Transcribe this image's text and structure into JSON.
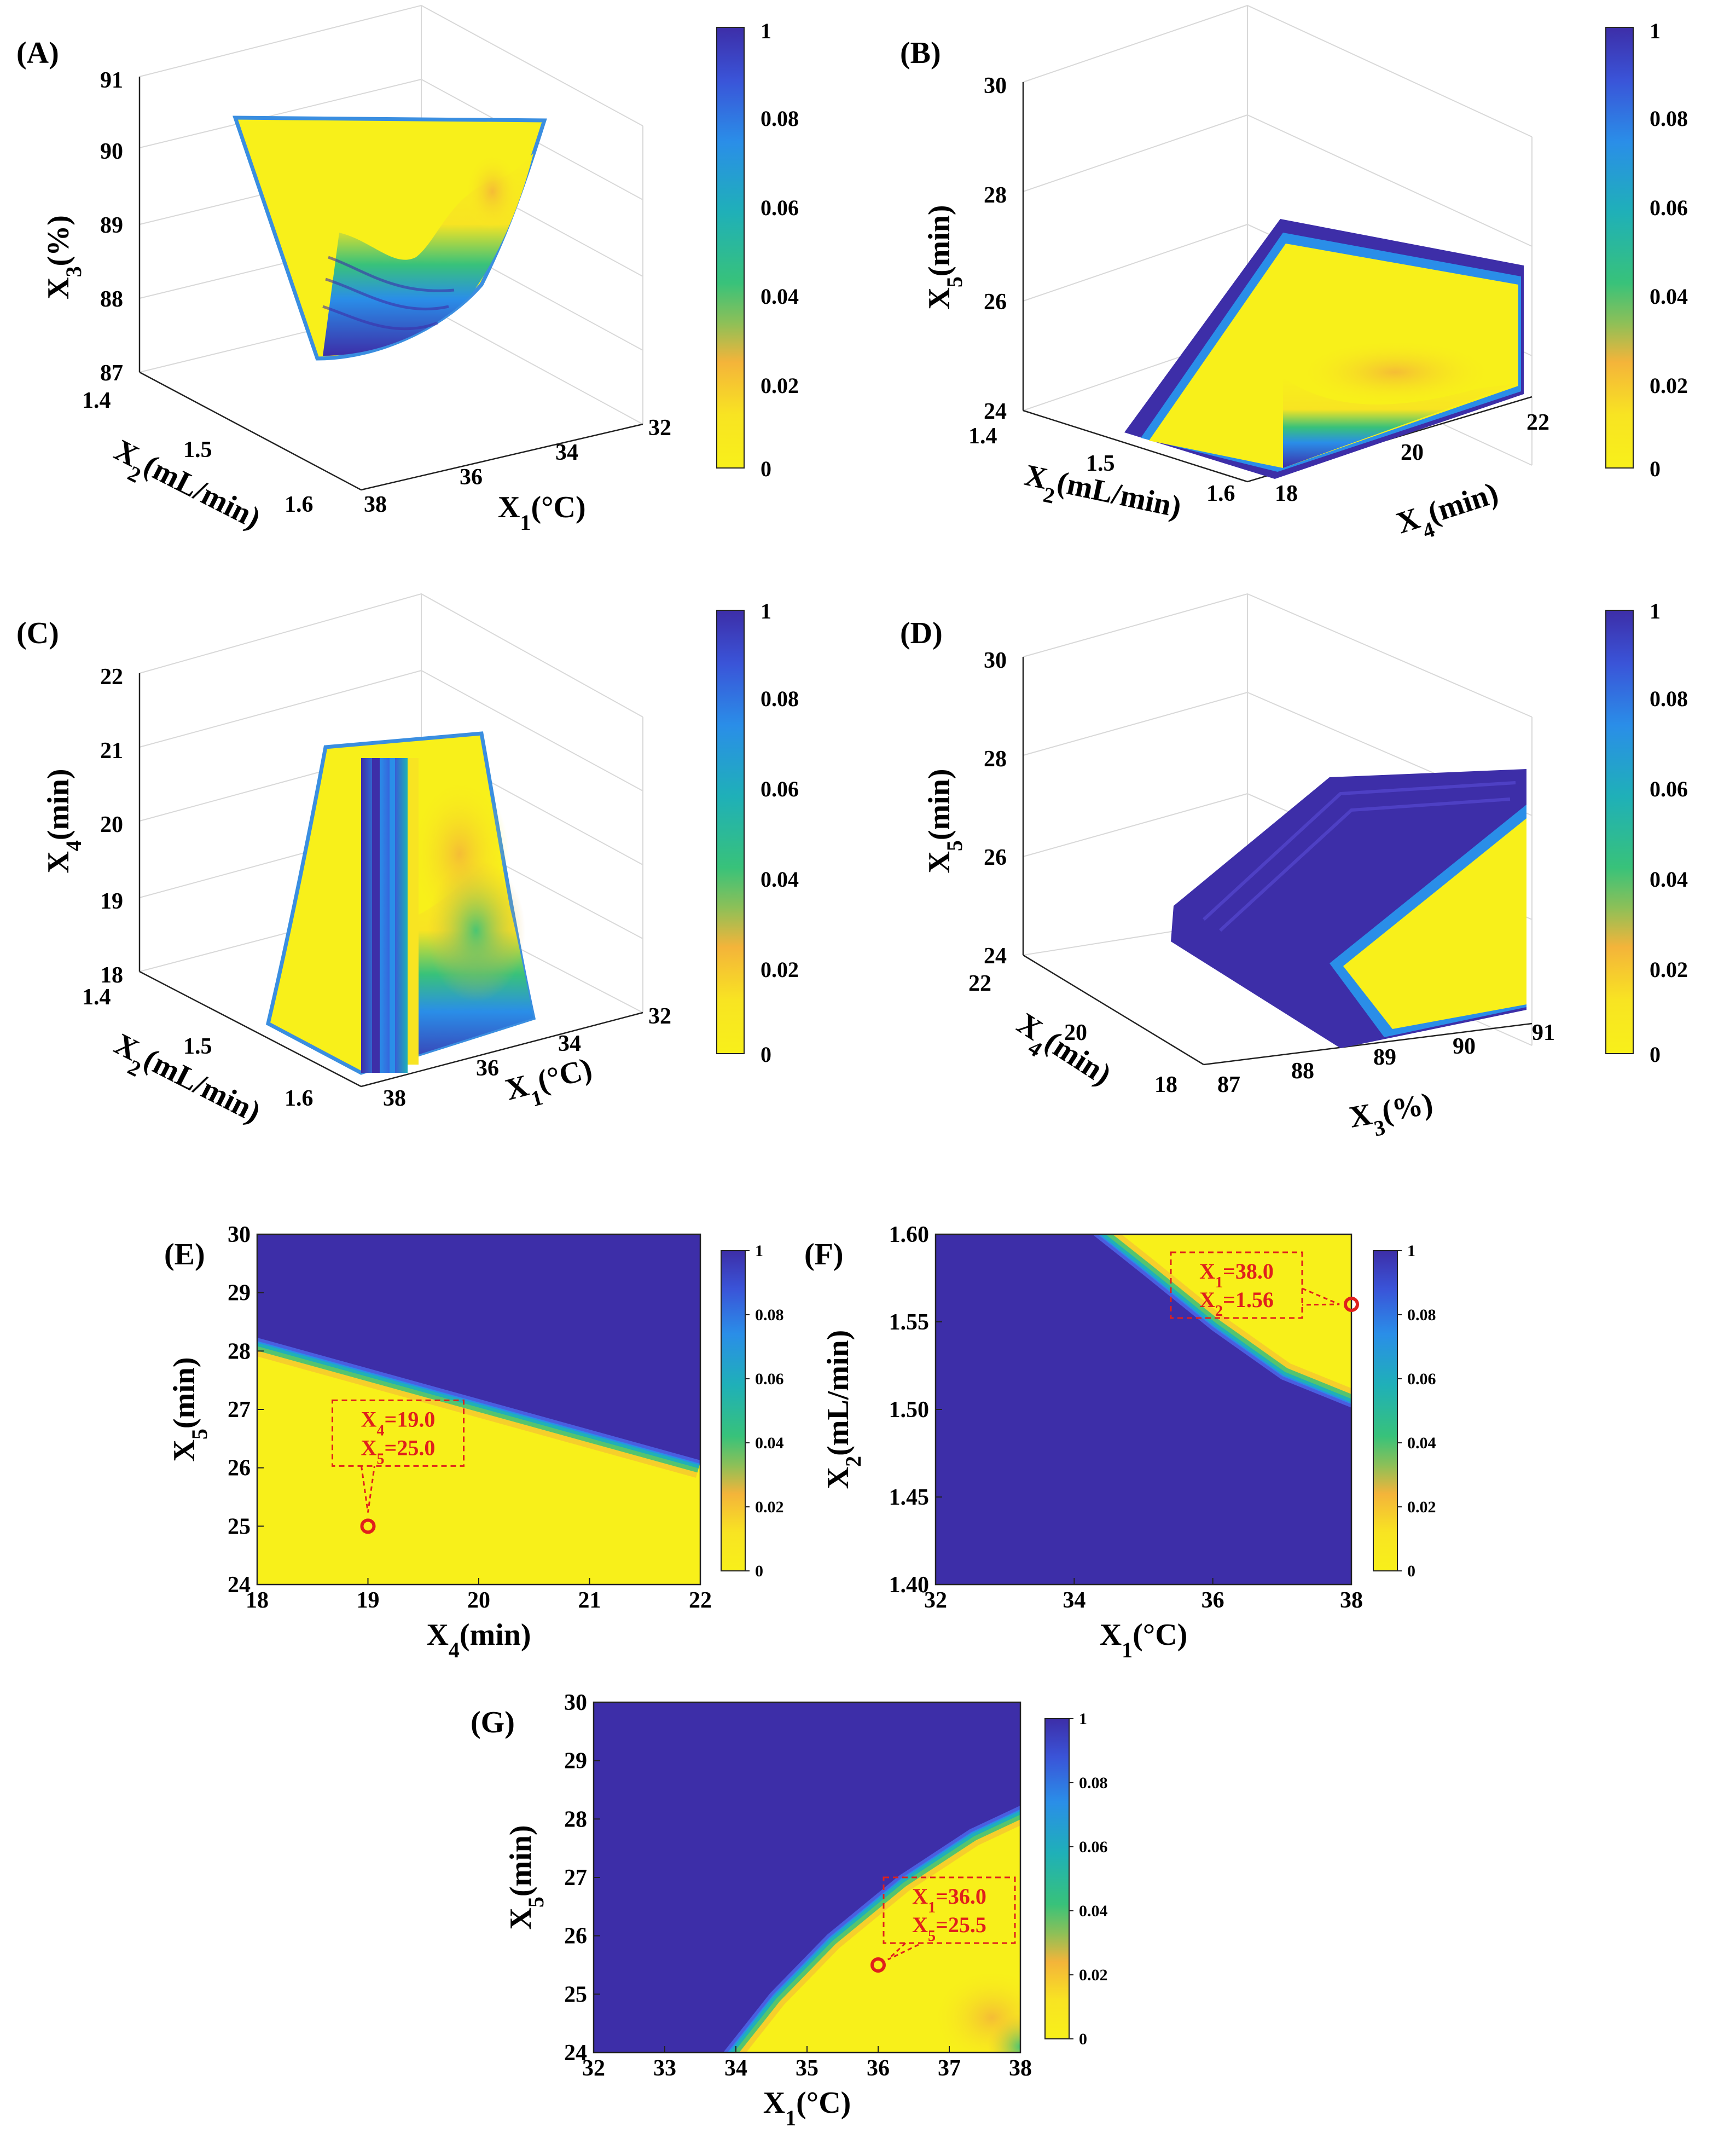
{
  "colors": {
    "yellow": "#f8f01a",
    "orange": "#f4b43a",
    "green": "#38c27a",
    "teal": "#1fb0b8",
    "blue": "#2a8ee8",
    "indigo": "#3d2ea8",
    "annotation_red": "#e0201c"
  },
  "chart_data": [
    {
      "panel": "(A)",
      "type": "surface3d",
      "x_label": "X1(°C)",
      "y_label": "X2(mL/min)",
      "z_label": "X3(%)",
      "x_ticks": [
        "32",
        "34",
        "36",
        "38"
      ],
      "y_ticks": [
        "1.4",
        "1.5",
        "1.6"
      ],
      "z_ticks": [
        "87",
        "88",
        "89",
        "90",
        "91"
      ],
      "colorbar_ticks": [
        "0",
        "0.02",
        "0.04",
        "0.06",
        "0.08",
        "1"
      ]
    },
    {
      "panel": "(B)",
      "type": "surface3d",
      "x_label": "X4(min)",
      "y_label": "X2(mL/min)",
      "z_label": "X5(min)",
      "x_ticks": [
        "18",
        "20",
        "22"
      ],
      "y_ticks": [
        "1.4",
        "1.5",
        "1.6"
      ],
      "z_ticks": [
        "24",
        "26",
        "28",
        "30"
      ],
      "colorbar_ticks": [
        "0",
        "0.02",
        "0.04",
        "0.06",
        "0.08",
        "1"
      ]
    },
    {
      "panel": "(C)",
      "type": "surface3d",
      "x_label": "X1(°C)",
      "y_label": "X2(mL/min)",
      "z_label": "X4(min)",
      "x_ticks": [
        "32",
        "34",
        "36",
        "38"
      ],
      "y_ticks": [
        "1.4",
        "1.5",
        "1.6"
      ],
      "z_ticks": [
        "18",
        "19",
        "20",
        "21",
        "22"
      ],
      "colorbar_ticks": [
        "0",
        "0.02",
        "0.04",
        "0.06",
        "0.08",
        "1"
      ]
    },
    {
      "panel": "(D)",
      "type": "surface3d",
      "x_label": "X3(%)",
      "y_label": "X4(min)",
      "z_label": "X5(min)",
      "x_ticks": [
        "87",
        "88",
        "89",
        "90",
        "91"
      ],
      "y_ticks": [
        "18",
        "20",
        "22"
      ],
      "z_ticks": [
        "24",
        "26",
        "28",
        "30"
      ],
      "colorbar_ticks": [
        "0",
        "0.02",
        "0.04",
        "0.06",
        "0.08",
        "1"
      ]
    },
    {
      "panel": "(E)",
      "type": "heatmap",
      "x_label": "X4(min)",
      "y_label": "X5(min)",
      "xlim": [
        18,
        22
      ],
      "ylim": [
        24,
        30
      ],
      "x_ticks": [
        "18",
        "19",
        "20",
        "21",
        "22"
      ],
      "y_ticks": [
        "24",
        "25",
        "26",
        "27",
        "28",
        "29",
        "30"
      ],
      "boundary_line": [
        [
          18,
          28.2
        ],
        [
          22,
          26.1
        ]
      ],
      "optimum_point": {
        "x": 19.0,
        "y": 25.0
      },
      "annotation": [
        "X4=19.0",
        "X5=25.0"
      ],
      "colorbar_ticks": [
        "0",
        "0.02",
        "0.04",
        "0.06",
        "0.08",
        "1"
      ]
    },
    {
      "panel": "(F)",
      "type": "heatmap",
      "x_label": "X1(°C)",
      "y_label": "X2(mL/min)",
      "xlim": [
        32,
        38
      ],
      "ylim": [
        1.4,
        1.6
      ],
      "x_ticks": [
        "32",
        "34",
        "36",
        "38"
      ],
      "y_ticks": [
        "1.40",
        "1.45",
        "1.50",
        "1.55",
        "1.60"
      ],
      "boundary_curve": [
        [
          34.3,
          1.6
        ],
        [
          35.0,
          1.578
        ],
        [
          36.0,
          1.546
        ],
        [
          37.0,
          1.518
        ],
        [
          38.0,
          1.502
        ]
      ],
      "optimum_point": {
        "x": 38.0,
        "y": 1.56
      },
      "annotation": [
        "X1=38.0",
        "X2=1.56"
      ],
      "colorbar_ticks": [
        "0",
        "0.02",
        "0.04",
        "0.06",
        "0.08",
        "1"
      ]
    },
    {
      "panel": "(G)",
      "type": "heatmap",
      "x_label": "X1(°C)",
      "y_label": "X5(min)",
      "xlim": [
        32,
        38
      ],
      "ylim": [
        24,
        30
      ],
      "x_ticks": [
        "32",
        "33",
        "34",
        "35",
        "36",
        "37",
        "38"
      ],
      "y_ticks": [
        "24",
        "25",
        "26",
        "27",
        "28",
        "29",
        "30"
      ],
      "boundary_curve": [
        [
          33.85,
          24.0
        ],
        [
          34.5,
          25.0
        ],
        [
          35.3,
          26.0
        ],
        [
          36.3,
          27.0
        ],
        [
          37.3,
          27.8
        ],
        [
          38.0,
          28.2
        ]
      ],
      "optimum_point": {
        "x": 36.0,
        "y": 25.5
      },
      "annotation": [
        "X1=36.0",
        "X5=25.5"
      ],
      "colorbar_ticks": [
        "0",
        "0.02",
        "0.04",
        "0.06",
        "0.08",
        "1"
      ]
    }
  ]
}
